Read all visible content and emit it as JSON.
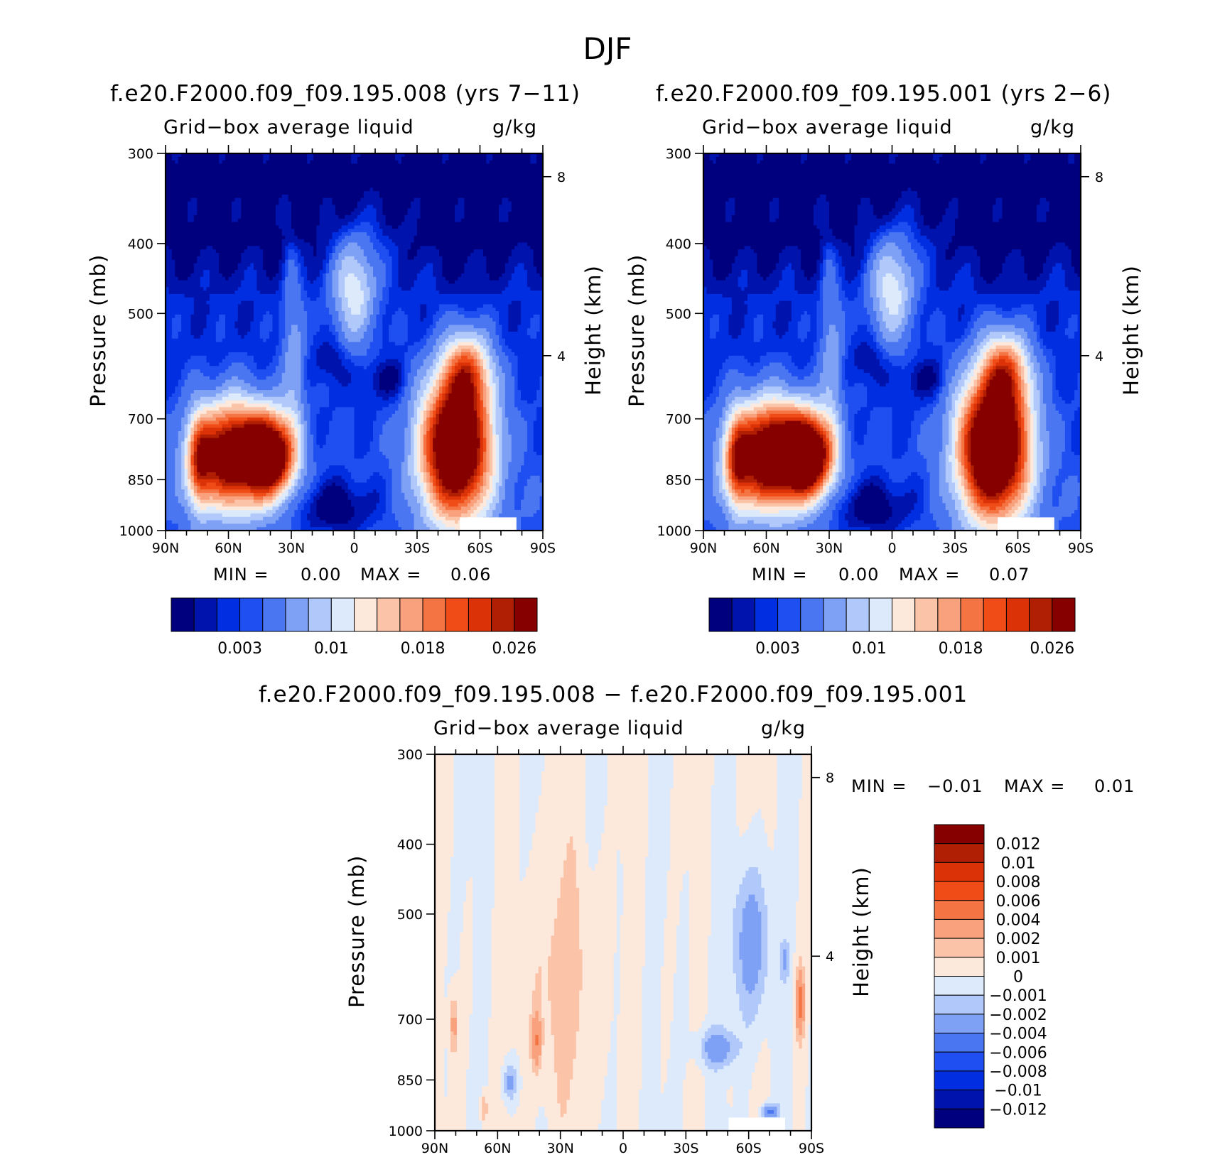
{
  "title": "DJF",
  "panels": [
    {
      "title": "f.e20.F2000.f09_f09.195.008 (yrs 7−11)",
      "var_label": "Grid−box average liquid",
      "units": "g/kg",
      "ylabel": "Pressure (mb)",
      "y2label": "Height (km)",
      "min_text": "MIN =",
      "min_value": "0.00",
      "max_text": "MAX =",
      "max_value": "0.06"
    },
    {
      "title": "f.e20.F2000.f09_f09.195.001 (yrs 2−6)",
      "var_label": "Grid−box average liquid",
      "units": "g/kg",
      "ylabel": "Pressure (mb)",
      "y2label": "Height (km)",
      "min_text": "MIN =",
      "min_value": "0.00",
      "max_text": "MAX =",
      "max_value": "0.07"
    },
    {
      "title": "f.e20.F2000.f09_f09.195.008 − f.e20.F2000.f09_f09.195.001",
      "var_label": "Grid−box average liquid",
      "units": "g/kg",
      "ylabel": "Pressure (mb)",
      "y2label": "Height (km)",
      "min_text": "MIN =",
      "min_value": "−0.01",
      "max_text": "MAX =",
      "max_value": "0.01"
    }
  ],
  "chart_data": [
    {
      "type": "heatmap",
      "title": "f.e20.F2000.f09_f09.195.008 (yrs 7−11)",
      "x_ticks": [
        "90N",
        "60N",
        "30N",
        "0",
        "30S",
        "60S",
        "90S"
      ],
      "y_ticks": [
        300,
        400,
        500,
        700,
        850,
        1000
      ],
      "y2_ticks": [
        8,
        4
      ],
      "ylabel": "Pressure (mb)",
      "y2label": "Height (km)",
      "levels": [
        0.001,
        0.002,
        0.003,
        0.004,
        0.006,
        0.008,
        0.01,
        0.012,
        0.014,
        0.016,
        0.018,
        0.02,
        0.022,
        0.024,
        0.026
      ],
      "colorbar_labels": [
        "0.003",
        "0.01",
        "0.018",
        "0.026"
      ],
      "colors": [
        "#00007f",
        "#0014ad",
        "#002ee0",
        "#1f4ff0",
        "#4a76f2",
        "#7ea0f5",
        "#b0c8fa",
        "#dceafc",
        "#fde8dc",
        "#fbc4a8",
        "#f9a07c",
        "#f57444",
        "#f04c18",
        "#dc3208",
        "#b01e04",
        "#870000"
      ],
      "min": 0.0,
      "max": 0.06
    },
    {
      "type": "heatmap",
      "title": "f.e20.F2000.f09_f09.195.001 (yrs 2−6)",
      "x_ticks": [
        "90N",
        "60N",
        "30N",
        "0",
        "30S",
        "60S",
        "90S"
      ],
      "y_ticks": [
        300,
        400,
        500,
        700,
        850,
        1000
      ],
      "y2_ticks": [
        8,
        4
      ],
      "ylabel": "Pressure (mb)",
      "y2label": "Height (km)",
      "levels": [
        0.001,
        0.002,
        0.003,
        0.004,
        0.006,
        0.008,
        0.01,
        0.012,
        0.014,
        0.016,
        0.018,
        0.02,
        0.022,
        0.024,
        0.026
      ],
      "colorbar_labels": [
        "0.003",
        "0.01",
        "0.018",
        "0.026"
      ],
      "colors": [
        "#00007f",
        "#0014ad",
        "#002ee0",
        "#1f4ff0",
        "#4a76f2",
        "#7ea0f5",
        "#b0c8fa",
        "#dceafc",
        "#fde8dc",
        "#fbc4a8",
        "#f9a07c",
        "#f57444",
        "#f04c18",
        "#dc3208",
        "#b01e04",
        "#870000"
      ],
      "min": 0.0,
      "max": 0.07
    },
    {
      "type": "heatmap",
      "title": "f.e20.F2000.f09_f09.195.008 − f.e20.F2000.f09_f09.195.001",
      "x_ticks": [
        "90N",
        "60N",
        "30N",
        "0",
        "30S",
        "60S",
        "90S"
      ],
      "y_ticks": [
        300,
        400,
        500,
        700,
        850,
        1000
      ],
      "y2_ticks": [
        8,
        4
      ],
      "ylabel": "Pressure (mb)",
      "y2label": "Height (km)",
      "colorbar_labels": [
        "0.012",
        "0.01",
        "0.008",
        "0.006",
        "0.004",
        "0.002",
        "0.001",
        "0",
        "−0.001",
        "−0.002",
        "−0.004",
        "−0.006",
        "−0.008",
        "−0.01",
        "−0.012"
      ],
      "colors": [
        "#870000",
        "#b01e04",
        "#dc3208",
        "#f04c18",
        "#f57444",
        "#f9a07c",
        "#fbc4a8",
        "#fde8dc",
        "#dceafc",
        "#b0c8fa",
        "#7ea0f5",
        "#4a76f2",
        "#1f4ff0",
        "#002ee0",
        "#0014ad",
        "#00007f"
      ],
      "min": -0.01,
      "max": 0.01
    }
  ]
}
